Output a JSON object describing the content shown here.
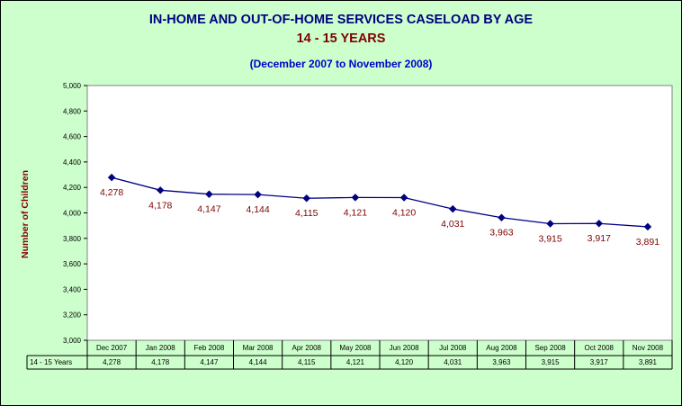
{
  "chart_data": {
    "type": "line",
    "title": "IN-HOME AND OUT-OF-HOME SERVICES CASELOAD BY AGE",
    "subtitle_age": "14 - 15 YEARS",
    "subtitle_range": "(December 2007 to November 2008)",
    "ylabel": "Number of Children",
    "ylim": [
      3000,
      5000
    ],
    "ytick_step": 200,
    "grid": false,
    "categories": [
      "Dec 2007",
      "Jan 2008",
      "Feb 2008",
      "Mar 2008",
      "Apr 2008",
      "May 2008",
      "Jun 2008",
      "Jul 2008",
      "Aug 2008",
      "Sep 2008",
      "Oct 2008",
      "Nov 2008"
    ],
    "series": [
      {
        "name": "14 - 15 Years",
        "values": [
          4278,
          4178,
          4147,
          4144,
          4115,
          4121,
          4120,
          4031,
          3963,
          3915,
          3917,
          3891
        ],
        "labels": [
          "4,278",
          "4,178",
          "4,147",
          "4,144",
          "4,115",
          "4,121",
          "4,120",
          "4,031",
          "3,963",
          "3,915",
          "3,917",
          "3,891"
        ]
      }
    ],
    "data_table": true,
    "colors": {
      "background": "#ccffcc",
      "plot": "#ffffff",
      "line": "#000080",
      "data_label": "#800000"
    }
  }
}
